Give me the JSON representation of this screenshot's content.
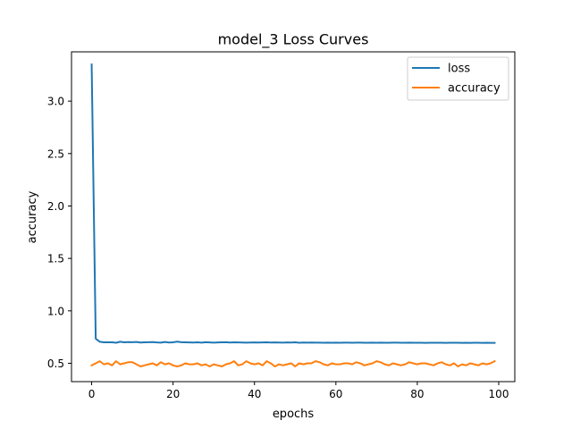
{
  "chart_data": {
    "type": "line",
    "title": "model_3 Loss Curves",
    "xlabel": "epochs",
    "ylabel": "accuracy",
    "xlim": [
      -4.95,
      103.95
    ],
    "ylim": [
      0.325,
      3.47
    ],
    "xticks": [
      0,
      20,
      40,
      60,
      80,
      100
    ],
    "yticks": [
      0.5,
      1.0,
      1.5,
      2.0,
      2.5,
      3.0
    ],
    "ytick_labels": [
      "0.5",
      "1.0",
      "1.5",
      "2.0",
      "2.5",
      "3.0"
    ],
    "grid": false,
    "legend_position": "upper right",
    "series": [
      {
        "name": "loss",
        "color": "#1f77b4",
        "x": [
          0,
          1,
          2,
          3,
          4,
          5,
          6,
          7,
          8,
          9,
          10,
          11,
          12,
          13,
          14,
          15,
          16,
          17,
          18,
          19,
          20,
          21,
          22,
          23,
          24,
          25,
          26,
          27,
          28,
          29,
          30,
          31,
          32,
          33,
          34,
          35,
          36,
          37,
          38,
          39,
          40,
          41,
          42,
          43,
          44,
          45,
          46,
          47,
          48,
          49,
          50,
          51,
          52,
          53,
          54,
          55,
          56,
          57,
          58,
          59,
          60,
          61,
          62,
          63,
          64,
          65,
          66,
          67,
          68,
          69,
          70,
          71,
          72,
          73,
          74,
          75,
          76,
          77,
          78,
          79,
          80,
          81,
          82,
          83,
          84,
          85,
          86,
          87,
          88,
          89,
          90,
          91,
          92,
          93,
          94,
          95,
          96,
          97,
          98,
          99
        ],
        "values": [
          3.35,
          0.735,
          0.705,
          0.7,
          0.7,
          0.7,
          0.696,
          0.705,
          0.7,
          0.702,
          0.701,
          0.703,
          0.698,
          0.7,
          0.701,
          0.702,
          0.699,
          0.697,
          0.703,
          0.698,
          0.7,
          0.706,
          0.701,
          0.7,
          0.699,
          0.698,
          0.7,
          0.697,
          0.701,
          0.699,
          0.697,
          0.699,
          0.7,
          0.701,
          0.698,
          0.7,
          0.699,
          0.698,
          0.697,
          0.698,
          0.699,
          0.698,
          0.699,
          0.7,
          0.698,
          0.699,
          0.698,
          0.697,
          0.699,
          0.698,
          0.7,
          0.696,
          0.698,
          0.697,
          0.698,
          0.697,
          0.697,
          0.696,
          0.697,
          0.696,
          0.697,
          0.696,
          0.697,
          0.697,
          0.696,
          0.697,
          0.697,
          0.696,
          0.696,
          0.697,
          0.696,
          0.697,
          0.696,
          0.696,
          0.697,
          0.697,
          0.696,
          0.696,
          0.697,
          0.696,
          0.696,
          0.696,
          0.695,
          0.696,
          0.696,
          0.696,
          0.696,
          0.695,
          0.696,
          0.696,
          0.696,
          0.695,
          0.696,
          0.695,
          0.696,
          0.696,
          0.695,
          0.696,
          0.695,
          0.695
        ]
      },
      {
        "name": "accuracy",
        "color": "#ff7f0e",
        "x": [
          0,
          1,
          2,
          3,
          4,
          5,
          6,
          7,
          8,
          9,
          10,
          11,
          12,
          13,
          14,
          15,
          16,
          17,
          18,
          19,
          20,
          21,
          22,
          23,
          24,
          25,
          26,
          27,
          28,
          29,
          30,
          31,
          32,
          33,
          34,
          35,
          36,
          37,
          38,
          39,
          40,
          41,
          42,
          43,
          44,
          45,
          46,
          47,
          48,
          49,
          50,
          51,
          52,
          53,
          54,
          55,
          56,
          57,
          58,
          59,
          60,
          61,
          62,
          63,
          64,
          65,
          66,
          67,
          68,
          69,
          70,
          71,
          72,
          73,
          74,
          75,
          76,
          77,
          78,
          79,
          80,
          81,
          82,
          83,
          84,
          85,
          86,
          87,
          88,
          89,
          90,
          91,
          92,
          93,
          94,
          95,
          96,
          97,
          98,
          99
        ],
        "values": [
          0.48,
          0.5,
          0.52,
          0.49,
          0.5,
          0.48,
          0.52,
          0.49,
          0.5,
          0.51,
          0.51,
          0.49,
          0.47,
          0.48,
          0.49,
          0.5,
          0.48,
          0.51,
          0.49,
          0.5,
          0.48,
          0.47,
          0.48,
          0.5,
          0.49,
          0.49,
          0.5,
          0.48,
          0.49,
          0.47,
          0.49,
          0.48,
          0.47,
          0.49,
          0.5,
          0.52,
          0.48,
          0.49,
          0.52,
          0.5,
          0.49,
          0.5,
          0.48,
          0.52,
          0.5,
          0.47,
          0.49,
          0.48,
          0.49,
          0.5,
          0.47,
          0.5,
          0.49,
          0.5,
          0.5,
          0.52,
          0.51,
          0.49,
          0.48,
          0.5,
          0.49,
          0.49,
          0.5,
          0.5,
          0.49,
          0.51,
          0.5,
          0.48,
          0.49,
          0.5,
          0.52,
          0.51,
          0.49,
          0.48,
          0.5,
          0.49,
          0.48,
          0.49,
          0.51,
          0.5,
          0.49,
          0.5,
          0.5,
          0.49,
          0.48,
          0.5,
          0.51,
          0.49,
          0.48,
          0.5,
          0.47,
          0.49,
          0.48,
          0.5,
          0.49,
          0.48,
          0.5,
          0.49,
          0.5,
          0.52
        ]
      }
    ]
  }
}
